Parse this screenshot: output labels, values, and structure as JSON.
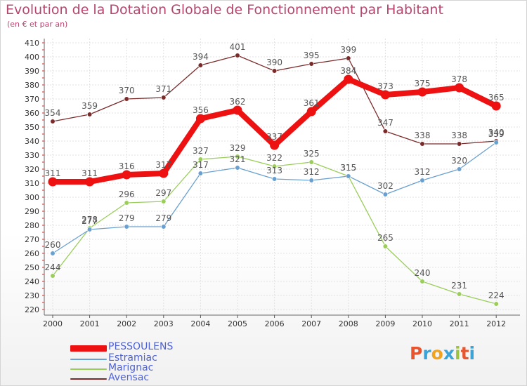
{
  "header": {
    "title": "Evolution de la Dotation Globale de Fonctionnement par Habitant",
    "subtitle": "(en € et par an)"
  },
  "chart_data": {
    "type": "line",
    "title": "Evolution de la Dotation Globale de Fonctionnement par Habitant",
    "subtitle": "(en € et par an)",
    "xlabel": "",
    "ylabel": "",
    "ylim": [
      220,
      410
    ],
    "yticks": [
      220,
      230,
      240,
      250,
      260,
      270,
      280,
      290,
      300,
      310,
      320,
      330,
      340,
      350,
      360,
      370,
      380,
      390,
      400,
      410
    ],
    "grid": true,
    "legend_position": "bottom-left",
    "categories": [
      "2000",
      "2001",
      "2002",
      "2003",
      "2004",
      "2005",
      "2006",
      "2007",
      "2008",
      "2009",
      "2010",
      "2011",
      "2012"
    ],
    "series": [
      {
        "name": "Avensac",
        "color": "#7b2a2a",
        "values": [
          354,
          359,
          370,
          371,
          394,
          401,
          390,
          395,
          399,
          347,
          338,
          338,
          340
        ]
      },
      {
        "name": "Marignac",
        "color": "#9acd5a",
        "values": [
          244,
          278,
          296,
          297,
          327,
          329,
          322,
          325,
          315,
          265,
          240,
          231,
          224
        ]
      },
      {
        "name": "Estramiac",
        "color": "#6aa0cf",
        "values": [
          260,
          277,
          279,
          279,
          317,
          321,
          313,
          312,
          315,
          302,
          312,
          320,
          339
        ]
      },
      {
        "name": "PESSOULENS",
        "color": "#ee1111",
        "values": [
          311,
          311,
          316,
          317,
          356,
          362,
          337,
          361,
          384,
          373,
          375,
          378,
          365
        ]
      }
    ]
  },
  "legend": {
    "items": [
      {
        "label": "PESSOULENS",
        "color": "#ee1111"
      },
      {
        "label": "Estramiac",
        "color": "#6aa0cf"
      },
      {
        "label": "Marignac",
        "color": "#9acd5a"
      },
      {
        "label": "Avensac",
        "color": "#7b2a2a"
      }
    ]
  },
  "logo": {
    "text": "Proxiti",
    "letter_colors": [
      "#e8542e",
      "#3aa4d8",
      "#f3a21b",
      "#3aa4d8",
      "#9bc53d",
      "#e8542e",
      "#3aa4d8"
    ]
  }
}
